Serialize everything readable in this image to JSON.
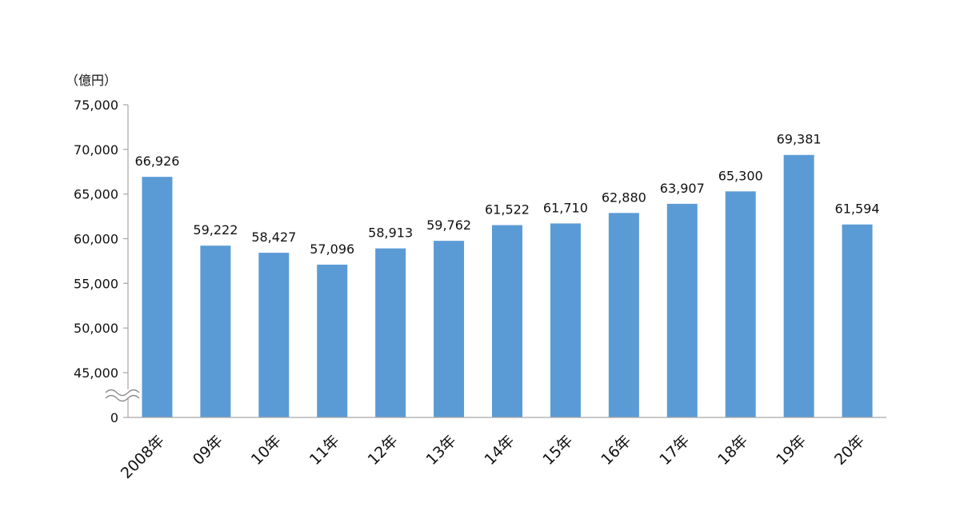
{
  "chart_data": {
    "type": "bar",
    "unit_label": "（億円）",
    "categories": [
      "2008年",
      "09年",
      "10年",
      "11年",
      "12年",
      "13年",
      "14年",
      "15年",
      "16年",
      "17年",
      "18年",
      "19年",
      "20年"
    ],
    "values": [
      66926,
      59222,
      58427,
      57096,
      58913,
      59762,
      61522,
      61710,
      62880,
      63907,
      65300,
      69381,
      61594
    ],
    "data_labels": [
      "66,926",
      "59,222",
      "58,427",
      "57,096",
      "58,913",
      "59,762",
      "61,522",
      "61,710",
      "62,880",
      "63,907",
      "65,300",
      "69,381",
      "61,594"
    ],
    "y_ticks": [
      {
        "value": 0,
        "label": "0"
      },
      {
        "value": 45000,
        "label": "45,000"
      },
      {
        "value": 50000,
        "label": "50,000"
      },
      {
        "value": 55000,
        "label": "55,000"
      },
      {
        "value": 60000,
        "label": "60,000"
      },
      {
        "value": 65000,
        "label": "65,000"
      },
      {
        "value": 70000,
        "label": "70,000"
      },
      {
        "value": 75000,
        "label": "75,000"
      }
    ],
    "ylim": [
      0,
      75000
    ],
    "axis_break": [
      0,
      45000
    ],
    "bar_color": "#5B9BD5",
    "grid": false,
    "legend": "none"
  }
}
